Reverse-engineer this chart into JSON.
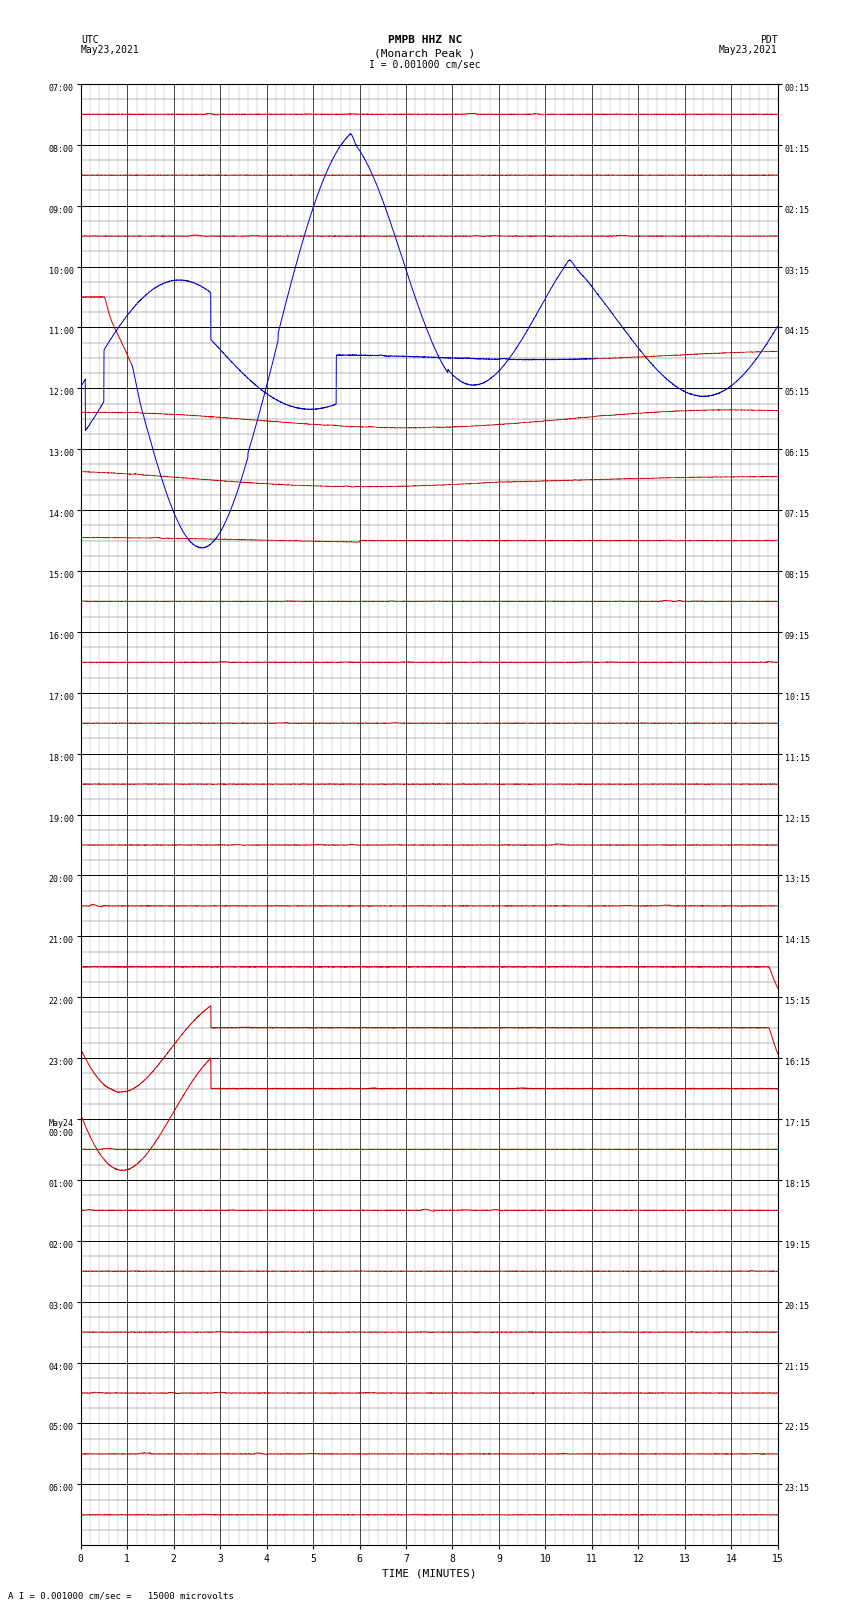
{
  "title_line1": "PMPB HHZ NC",
  "title_line2": "(Monarch Peak )",
  "scale_label": "I = 0.001000 cm/sec",
  "bottom_label": "A I = 0.001000 cm/sec =   15000 microvolts",
  "xlabel": "TIME (MINUTES)",
  "left_label_top": "UTC",
  "left_label_date": "May23,2021",
  "right_label_top": "PDT",
  "right_label_date": "May23,2021",
  "utc_yticks": [
    "07:00",
    "08:00",
    "09:00",
    "10:00",
    "11:00",
    "12:00",
    "13:00",
    "14:00",
    "15:00",
    "16:00",
    "17:00",
    "18:00",
    "19:00",
    "20:00",
    "21:00",
    "22:00",
    "23:00",
    "May24\n00:00",
    "01:00",
    "02:00",
    "03:00",
    "04:00",
    "05:00",
    "06:00"
  ],
  "pdt_yticks": [
    "00:15",
    "01:15",
    "02:15",
    "03:15",
    "04:15",
    "05:15",
    "06:15",
    "07:15",
    "08:15",
    "09:15",
    "10:15",
    "11:15",
    "12:15",
    "13:15",
    "14:15",
    "15:15",
    "16:15",
    "17:15",
    "18:15",
    "19:15",
    "20:15",
    "21:15",
    "22:15",
    "23:15"
  ],
  "num_rows": 24,
  "x_min": 0,
  "x_max": 15,
  "x_ticks": [
    0,
    1,
    2,
    3,
    4,
    5,
    6,
    7,
    8,
    9,
    10,
    11,
    12,
    13,
    14,
    15
  ],
  "bg_color": "#ffffff",
  "grid_major_color": "#000000",
  "grid_minor_color": "#888888",
  "seismo_color_red": "#cc0000",
  "seismo_color_blue": "#0000cc",
  "seismo_color_black": "#000000"
}
